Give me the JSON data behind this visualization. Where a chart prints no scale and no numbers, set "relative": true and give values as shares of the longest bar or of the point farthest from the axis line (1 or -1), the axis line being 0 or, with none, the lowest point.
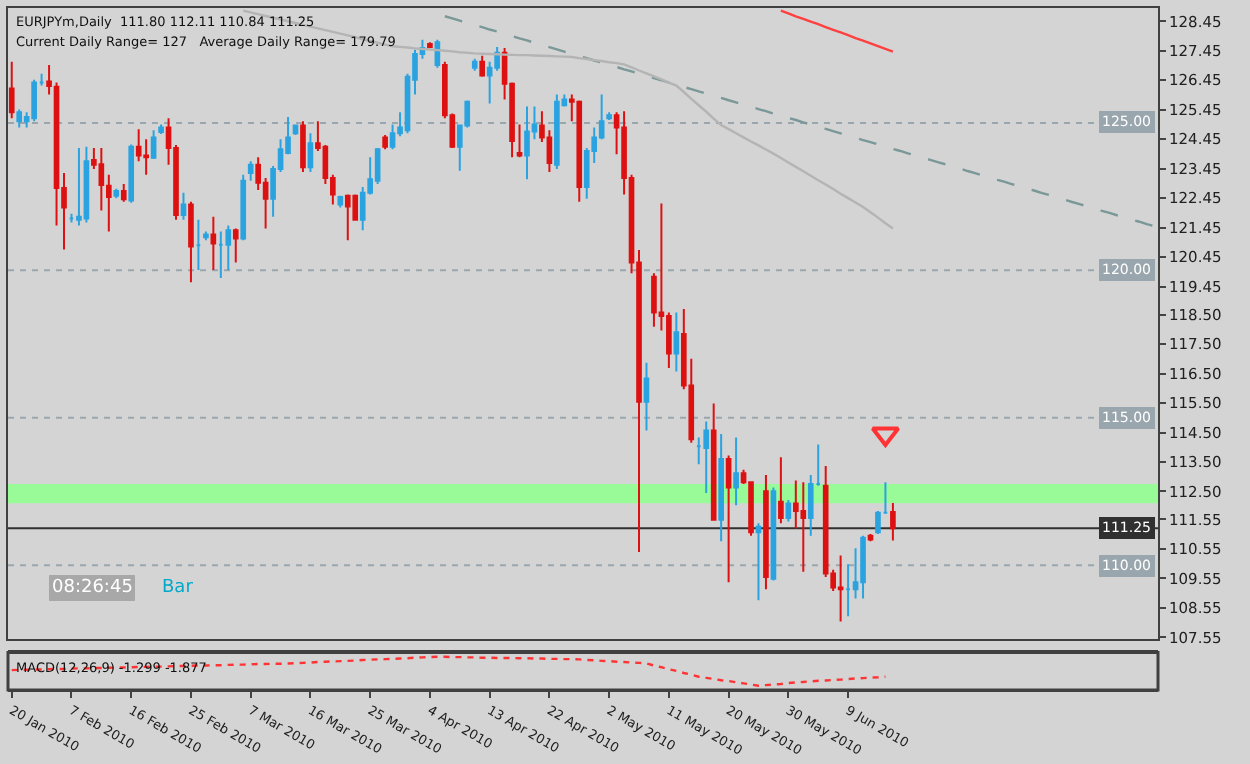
{
  "chart_data": [
    {
      "type": "candlestick",
      "title": "EURJPYm,Daily  111.80 112.11 110.84 111.25",
      "subtitle": "Current Daily Range= 127   Average Daily Range= 179.79",
      "ohlc": [
        [
          126.17,
          127.08,
          125.16,
          125.36
        ],
        [
          125.06,
          125.46,
          124.85,
          125.36
        ],
        [
          125.06,
          125.36,
          124.85,
          125.2
        ],
        [
          125.16,
          126.47,
          125.06,
          126.37
        ],
        [
          126.37,
          126.67,
          126.27,
          126.37
        ],
        [
          126.41,
          126.97,
          125.97,
          126.25
        ],
        [
          126.23,
          126.37,
          121.52,
          122.79
        ],
        [
          122.79,
          123.3,
          120.71,
          122.13
        ],
        [
          121.76,
          121.92,
          121.62,
          121.76
        ],
        [
          121.72,
          124.15,
          121.52,
          121.82
        ],
        [
          121.76,
          124.19,
          121.62,
          123.7
        ],
        [
          123.74,
          124.15,
          123.44,
          123.58
        ],
        [
          123.6,
          124.15,
          122.03,
          122.9
        ],
        [
          122.87,
          123.24,
          121.32,
          122.49
        ],
        [
          122.53,
          122.77,
          122.45,
          122.69
        ],
        [
          122.69,
          122.93,
          122.33,
          122.41
        ],
        [
          122.37,
          124.27,
          122.29,
          124.19
        ],
        [
          124.19,
          124.79,
          123.7,
          123.9
        ],
        [
          123.9,
          124.45,
          123.24,
          123.84
        ],
        [
          123.82,
          124.75,
          123.78,
          124.51
        ],
        [
          124.69,
          124.95,
          124.63,
          124.85
        ],
        [
          124.85,
          125.16,
          123.58,
          124.15
        ],
        [
          124.15,
          124.25,
          121.72,
          121.88
        ],
        [
          121.88,
          122.63,
          121.72,
          122.23
        ],
        [
          122.23,
          122.33,
          119.6,
          120.81
        ],
        [
          120.85,
          121.72,
          120.01,
          120.85
        ],
        [
          121.12,
          121.32,
          121.02,
          121.22
        ],
        [
          121.22,
          121.82,
          120.01,
          120.91
        ],
        [
          120.87,
          121.32,
          119.74,
          120.87
        ],
        [
          120.87,
          121.52,
          120.01,
          121.36
        ],
        [
          121.36,
          121.42,
          120.27,
          121.08
        ],
        [
          121.08,
          123.24,
          121.02,
          123.04
        ],
        [
          123.3,
          123.7,
          123.04,
          123.58
        ],
        [
          123.58,
          123.84,
          122.73,
          122.97
        ],
        [
          122.97,
          123.13,
          121.42,
          122.43
        ],
        [
          122.43,
          123.54,
          121.82,
          123.44
        ],
        [
          123.44,
          124.45,
          123.34,
          124.11
        ],
        [
          123.98,
          125.2,
          123.94,
          124.51
        ],
        [
          124.65,
          124.95,
          124.59,
          124.91
        ],
        [
          124.91,
          125.06,
          123.34,
          123.5
        ],
        [
          123.5,
          124.65,
          123.34,
          124.31
        ],
        [
          124.31,
          125.06,
          124.05,
          124.15
        ],
        [
          124.19,
          124.25,
          122.93,
          123.13
        ],
        [
          123.13,
          123.24,
          122.23,
          122.57
        ],
        [
          122.23,
          122.53,
          122.13,
          122.49
        ],
        [
          122.53,
          122.57,
          121.02,
          122.17
        ],
        [
          122.53,
          122.57,
          121.68,
          121.72
        ],
        [
          121.72,
          122.83,
          121.36,
          122.63
        ],
        [
          122.63,
          123.84,
          122.57,
          123.09
        ],
        [
          123.04,
          124.15,
          122.93,
          124.11
        ],
        [
          124.51,
          124.59,
          124.11,
          124.19
        ],
        [
          124.19,
          124.95,
          124.11,
          124.65
        ],
        [
          124.65,
          125.36,
          124.55,
          124.85
        ],
        [
          124.75,
          126.67,
          124.65,
          126.57
        ],
        [
          126.47,
          127.48,
          125.97,
          127.34
        ],
        [
          127.34,
          127.82,
          127.18,
          127.54
        ],
        [
          127.68,
          127.74,
          127.54,
          127.58
        ],
        [
          126.97,
          127.82,
          126.87,
          127.74
        ],
        [
          126.97,
          127.08,
          125.16,
          125.26
        ],
        [
          125.26,
          125.32,
          124.15,
          124.19
        ],
        [
          124.19,
          124.95,
          123.38,
          124.91
        ],
        [
          124.91,
          125.76,
          124.85,
          125.72
        ],
        [
          126.87,
          127.18,
          126.77,
          127.08
        ],
        [
          127.08,
          127.28,
          126.57,
          126.61
        ],
        [
          126.61,
          127.08,
          125.66,
          126.87
        ],
        [
          126.87,
          127.58,
          126.77,
          127.38
        ],
        [
          127.38,
          127.54,
          125.8,
          126.33
        ],
        [
          126.33,
          126.37,
          123.84,
          124.39
        ],
        [
          123.98,
          124.95,
          123.84,
          123.9
        ],
        [
          123.9,
          125.56,
          123.09,
          124.71
        ],
        [
          124.71,
          125.56,
          124.45,
          124.95
        ],
        [
          124.91,
          125.4,
          124.35,
          124.51
        ],
        [
          124.51,
          124.75,
          123.34,
          123.64
        ],
        [
          123.58,
          125.97,
          123.44,
          125.72
        ],
        [
          125.6,
          125.97,
          125.56,
          125.8
        ],
        [
          125.8,
          125.97,
          125.06,
          125.72
        ],
        [
          125.72,
          125.76,
          122.33,
          122.83
        ],
        [
          122.83,
          124.15,
          122.43,
          124.05
        ],
        [
          124.05,
          124.85,
          123.64,
          124.51
        ],
        [
          124.51,
          125.97,
          124.45,
          125.06
        ],
        [
          125.16,
          125.36,
          125.1,
          125.26
        ],
        [
          125.26,
          125.36,
          123.94,
          124.85
        ],
        [
          124.85,
          125.4,
          122.57,
          123.13
        ],
        [
          123.13,
          123.24,
          119.9,
          120.27
        ],
        [
          120.27,
          120.69,
          110.45,
          115.54
        ],
        [
          115.54,
          116.87,
          114.57,
          116.33
        ],
        [
          119.78,
          119.9,
          118.09,
          118.57
        ],
        [
          118.57,
          122.27,
          117.96,
          118.45
        ],
        [
          118.45,
          118.57,
          116.69,
          117.18
        ],
        [
          117.18,
          118.57,
          116.57,
          117.9
        ],
        [
          117.84,
          118.69,
          115.97,
          116.09
        ],
        [
          116.09,
          117.0,
          114.15,
          114.27
        ],
        [
          114.03,
          114.33,
          113.42,
          114.03
        ],
        [
          113.97,
          114.87,
          112.45,
          114.57
        ],
        [
          114.57,
          115.48,
          111.54,
          111.54
        ],
        [
          111.54,
          114.45,
          110.81,
          113.6
        ],
        [
          113.6,
          113.72,
          109.42,
          112.63
        ],
        [
          112.63,
          114.33,
          112.03,
          113.12
        ],
        [
          113.12,
          113.24,
          112.75,
          112.81
        ],
        [
          112.81,
          112.81,
          111.0,
          111.12
        ],
        [
          111.12,
          111.42,
          108.81,
          111.3
        ],
        [
          112.51,
          113.06,
          109.18,
          109.6
        ],
        [
          109.54,
          112.63,
          109.48,
          112.51
        ],
        [
          112.15,
          113.66,
          111.42,
          111.6
        ],
        [
          111.6,
          112.21,
          111.48,
          112.09
        ],
        [
          112.09,
          112.87,
          111.24,
          111.84
        ],
        [
          111.84,
          112.81,
          109.78,
          111.6
        ],
        [
          111.6,
          113.06,
          111.0,
          112.75
        ],
        [
          112.75,
          114.09,
          112.69,
          112.75
        ],
        [
          112.69,
          113.36,
          109.6,
          109.72
        ],
        [
          109.72,
          109.84,
          109.12,
          109.24
        ],
        [
          109.24,
          110.33,
          108.09,
          109.18
        ],
        [
          109.18,
          110.03,
          108.27,
          109.18
        ],
        [
          109.18,
          110.57,
          108.87,
          109.42
        ],
        [
          109.42,
          111.0,
          108.87,
          110.93
        ],
        [
          111.0,
          111.06,
          110.81,
          110.87
        ],
        [
          111.12,
          111.84,
          111.06,
          111.78
        ],
        [
          111.78,
          112.81,
          111.78,
          111.78
        ],
        [
          111.8,
          112.11,
          110.84,
          111.25
        ],
        null,
        null,
        null,
        null,
        null,
        null,
        null,
        null,
        null,
        null,
        null,
        null,
        null,
        null,
        null,
        null,
        null,
        null,
        null,
        null,
        null,
        null,
        null,
        null,
        null,
        null,
        null,
        null,
        null,
        null,
        null,
        null,
        null,
        null,
        null
      ],
      "colors": [
        "#dd1111",
        "#2aa3e0",
        "#2aa3e0",
        "#2aa3e0",
        "#2aa3e0",
        "#dd1111",
        "#dd1111",
        "#dd1111",
        "#2aa3e0",
        "#2aa3e0",
        "#2aa3e0",
        "#dd1111",
        "#dd1111",
        "#dd1111",
        "#2aa3e0",
        "#dd1111",
        "#2aa3e0",
        "#dd1111",
        "#dd1111",
        "#2aa3e0",
        "#2aa3e0",
        "#dd1111",
        "#dd1111",
        "#2aa3e0",
        "#dd1111",
        "#2aa3e0",
        "#2aa3e0",
        "#dd1111",
        "#2aa3e0",
        "#2aa3e0",
        "#dd1111",
        "#2aa3e0",
        "#2aa3e0",
        "#dd1111",
        "#dd1111",
        "#2aa3e0",
        "#2aa3e0",
        "#2aa3e0",
        "#2aa3e0",
        "#dd1111",
        "#2aa3e0",
        "#dd1111",
        "#dd1111",
        "#dd1111",
        "#2aa3e0",
        "#dd1111",
        "#dd1111",
        "#2aa3e0",
        "#2aa3e0",
        "#2aa3e0",
        "#dd1111",
        "#2aa3e0",
        "#2aa3e0",
        "#2aa3e0",
        "#2aa3e0",
        "#2aa3e0",
        "#dd1111",
        "#2aa3e0",
        "#dd1111",
        "#dd1111",
        "#2aa3e0",
        "#2aa3e0",
        "#2aa3e0",
        "#dd1111",
        "#2aa3e0",
        "#2aa3e0",
        "#dd1111",
        "#dd1111",
        "#dd1111",
        "#2aa3e0",
        "#2aa3e0",
        "#dd1111",
        "#dd1111",
        "#2aa3e0",
        "#2aa3e0",
        "#dd1111",
        "#dd1111",
        "#2aa3e0",
        "#2aa3e0",
        "#2aa3e0",
        "#2aa3e0",
        "#dd1111",
        "#dd1111",
        "#dd1111",
        "#dd1111",
        "#2aa3e0",
        "#dd1111",
        "#dd1111",
        "#dd1111",
        "#2aa3e0",
        "#dd1111",
        "#dd1111",
        "#2aa3e0",
        "#2aa3e0",
        "#dd1111",
        "#2aa3e0",
        "#dd1111",
        "#2aa3e0",
        "#dd1111",
        "#dd1111",
        "#2aa3e0",
        "#dd1111",
        "#2aa3e0",
        "#dd1111",
        "#2aa3e0",
        "#dd1111",
        "#dd1111",
        "#2aa3e0",
        "#2aa3e0",
        "#dd1111",
        "#dd1111",
        "#dd1111",
        "#2aa3e0",
        "#2aa3e0",
        "#2aa3e0",
        "#dd1111",
        "#2aa3e0",
        "#2aa3e0",
        "#dd1111",
        null,
        null,
        null,
        null,
        null,
        null,
        null,
        null,
        null,
        null,
        null,
        null,
        null,
        null,
        null,
        null,
        null,
        null,
        null,
        null,
        null,
        null,
        null,
        null,
        null,
        null,
        null,
        null,
        null,
        null,
        null,
        null,
        null,
        null,
        null
      ],
      "ylim": [
        107.5,
        128.9
      ],
      "yticks": [
        {
          "value": 128.45,
          "label": "128.45"
        },
        {
          "value": 127.45,
          "label": "127.45"
        },
        {
          "value": 126.45,
          "label": "126.45"
        },
        {
          "value": 125.45,
          "label": "125.45"
        },
        {
          "value": 124.45,
          "label": "124.45"
        },
        {
          "value": 123.45,
          "label": "123.45"
        },
        {
          "value": 122.45,
          "label": "122.45"
        },
        {
          "value": 121.45,
          "label": "121.45"
        },
        {
          "value": 120.45,
          "label": "120.45"
        },
        {
          "value": 119.45,
          "label": "119.45"
        },
        {
          "value": 118.5,
          "label": "118.50"
        },
        {
          "value": 117.5,
          "label": "117.50"
        },
        {
          "value": 116.5,
          "label": "116.50"
        },
        {
          "value": 115.5,
          "label": "115.50"
        },
        {
          "value": 114.5,
          "label": "114.50"
        },
        {
          "value": 113.5,
          "label": "113.50"
        },
        {
          "value": 112.5,
          "label": "112.50"
        },
        {
          "value": 111.55,
          "label": "111.55"
        },
        {
          "value": 110.55,
          "label": "110.55"
        },
        {
          "value": 109.55,
          "label": "109.55"
        },
        {
          "value": 108.55,
          "label": "108.55"
        },
        {
          "value": 107.55,
          "label": "107.55"
        }
      ],
      "tick_labels": "y",
      "ref_lines": [
        {
          "axis": "y",
          "value": 125.0,
          "label": "125.00",
          "color": "#9aa6ad",
          "line_style": "dotted"
        },
        {
          "axis": "y",
          "value": 120.0,
          "label": "120.00",
          "color": "#9aa6ad",
          "line_style": "dotted"
        },
        {
          "axis": "y",
          "value": 115.0,
          "label": "115.00",
          "color": "#9aa6ad",
          "line_style": "dotted"
        },
        {
          "axis": "y",
          "value": 110.0,
          "label": "110.00",
          "color": "#9aa6ad",
          "line_style": "dotted"
        },
        {
          "axis": "y",
          "value": 111.25,
          "label": "111.25",
          "color": "#303030",
          "line_style": "solid"
        }
      ],
      "bands": [
        {
          "axis": "y",
          "from": 112.1,
          "to": 112.75,
          "color": "#98fb98"
        }
      ],
      "series": [
        {
          "type": "line",
          "color": "#7a9898",
          "line_style": "dashed",
          "values": [
            null,
            null,
            null,
            null,
            null,
            null,
            null,
            null,
            null,
            null,
            null,
            null,
            null,
            null,
            null,
            null,
            null,
            null,
            null,
            null,
            null,
            null,
            null,
            null,
            null,
            null,
            null,
            null,
            null,
            null,
            null,
            null,
            null,
            null,
            null,
            null,
            null,
            null,
            null,
            null,
            null,
            null,
            null,
            null,
            null,
            null,
            null,
            null,
            null,
            null,
            null,
            null,
            null,
            null,
            null,
            null,
            null,
            null,
            128.62,
            128.55,
            128.47,
            128.4,
            128.32,
            128.25,
            128.17,
            128.1,
            128.02,
            127.95,
            127.87,
            127.8,
            127.72,
            127.65,
            127.57,
            127.5,
            127.42,
            127.35,
            127.27,
            127.2,
            127.12,
            127.05,
            126.97,
            126.9,
            126.82,
            126.75,
            126.67,
            126.6,
            126.52,
            126.45,
            126.37,
            126.3,
            126.22,
            126.15,
            126.07,
            126.0,
            125.92,
            125.85,
            125.77,
            125.7,
            125.62,
            125.55,
            125.47,
            125.4,
            125.32,
            125.25,
            125.17,
            125.1,
            125.02,
            124.95,
            124.87,
            124.8,
            124.72,
            124.65,
            124.57,
            124.5,
            124.42,
            124.35,
            124.27,
            124.2,
            124.12,
            124.05,
            123.97,
            123.9,
            123.82,
            123.75,
            123.67,
            123.6,
            123.52,
            123.45,
            123.37,
            123.3,
            123.22,
            123.15,
            123.07,
            123.0,
            122.92,
            122.85,
            122.77,
            122.7,
            122.62,
            122.55,
            122.47,
            122.4,
            122.32,
            122.25,
            122.17,
            122.1,
            122.02,
            121.95,
            121.87,
            121.8,
            121.72,
            121.65,
            121.57,
            121.5
          ]
        },
        {
          "type": "line",
          "color": "#ff4040",
          "line_style": "solid",
          "values": [
            null,
            null,
            null,
            null,
            null,
            null,
            null,
            null,
            null,
            null,
            null,
            null,
            null,
            null,
            null,
            null,
            null,
            null,
            null,
            null,
            null,
            null,
            null,
            null,
            null,
            null,
            null,
            null,
            null,
            null,
            null,
            null,
            null,
            null,
            null,
            null,
            null,
            null,
            null,
            null,
            null,
            null,
            null,
            null,
            null,
            null,
            null,
            null,
            null,
            null,
            null,
            null,
            null,
            null,
            null,
            null,
            null,
            null,
            null,
            null,
            null,
            null,
            null,
            null,
            null,
            null,
            null,
            null,
            null,
            null,
            null,
            null,
            null,
            null,
            null,
            null,
            null,
            null,
            null,
            null,
            null,
            null,
            null,
            null,
            null,
            null,
            null,
            null,
            null,
            null,
            null,
            null,
            null,
            null,
            null,
            null,
            null,
            null,
            null,
            null,
            null,
            null,
            null,
            128.81,
            128.72,
            128.62,
            128.53,
            128.44,
            128.35,
            128.25,
            128.16,
            128.07,
            127.98,
            127.88,
            127.79,
            127.7,
            127.61,
            127.51,
            127.42,
            null,
            null,
            null,
            null,
            null,
            null,
            null,
            null,
            null,
            null,
            null,
            null,
            null,
            null,
            null,
            null,
            null,
            null,
            null,
            null,
            null,
            null,
            null,
            null,
            null,
            null,
            null,
            null,
            null,
            null,
            null,
            null,
            null,
            null,
            null
          ]
        },
        {
          "type": "line",
          "color": "#b4b4b4",
          "line_style": "solid",
          "values": [
            null,
            null,
            null,
            null,
            null,
            null,
            null,
            null,
            null,
            null,
            null,
            null,
            null,
            null,
            null,
            null,
            null,
            null,
            null,
            null,
            null,
            null,
            null,
            null,
            null,
            null,
            null,
            null,
            null,
            null,
            null,
            128.81,
            128.75,
            128.69,
            128.63,
            128.57,
            128.51,
            128.45,
            128.39,
            128.33,
            128.27,
            128.21,
            128.15,
            128.09,
            128.03,
            127.97,
            127.91,
            127.84,
            127.78,
            127.72,
            127.66,
            127.6,
            127.58,
            127.56,
            127.53,
            127.51,
            127.49,
            127.47,
            127.45,
            127.43,
            127.4,
            127.38,
            127.36,
            127.35,
            127.34,
            127.33,
            127.32,
            127.31,
            127.3,
            127.3,
            127.29,
            127.28,
            127.27,
            127.26,
            127.25,
            127.24,
            127.2,
            127.17,
            127.13,
            127.1,
            127.06,
            127.03,
            126.99,
            126.89,
            126.78,
            126.68,
            126.58,
            126.48,
            126.37,
            126.27,
            126.05,
            125.82,
            125.6,
            125.38,
            125.15,
            124.93,
            124.79,
            124.65,
            124.51,
            124.37,
            124.24,
            124.1,
            123.96,
            123.81,
            123.66,
            123.51,
            123.36,
            123.21,
            123.06,
            122.91,
            122.76,
            122.6,
            122.45,
            122.3,
            122.15,
            121.97,
            121.79,
            121.6,
            121.42,
            null,
            null,
            null,
            null,
            null,
            null,
            null,
            null,
            null,
            null,
            null,
            null,
            null,
            null,
            null,
            null,
            null,
            null,
            null,
            null,
            null,
            null,
            null,
            null,
            null,
            null,
            null,
            null,
            null,
            null,
            null,
            null,
            null,
            null,
            null
          ]
        },
        {
          "type": "scatter",
          "color": "#ff3333",
          "marker": "triangle",
          "values": [
            null,
            null,
            null,
            null,
            null,
            null,
            null,
            null,
            null,
            null,
            null,
            null,
            null,
            null,
            null,
            null,
            null,
            null,
            null,
            null,
            null,
            null,
            null,
            null,
            null,
            null,
            null,
            null,
            null,
            null,
            null,
            null,
            null,
            null,
            null,
            null,
            null,
            null,
            null,
            null,
            null,
            null,
            null,
            null,
            null,
            null,
            null,
            null,
            null,
            null,
            null,
            null,
            null,
            null,
            null,
            null,
            null,
            null,
            null,
            null,
            null,
            null,
            null,
            null,
            null,
            null,
            null,
            null,
            null,
            null,
            null,
            null,
            null,
            null,
            null,
            null,
            null,
            null,
            null,
            null,
            null,
            null,
            null,
            null,
            null,
            null,
            null,
            null,
            null,
            null,
            null,
            null,
            null,
            null,
            null,
            null,
            null,
            null,
            null,
            null,
            null,
            null,
            null,
            null,
            null,
            null,
            null,
            null,
            null,
            null,
            null,
            null,
            null,
            null,
            null,
            null,
            null,
            114.45,
            null,
            null,
            null,
            null,
            null,
            null,
            null,
            null,
            null,
            null,
            null,
            null,
            null,
            null,
            null,
            null,
            null,
            null,
            null,
            null,
            null,
            null,
            null,
            null,
            null,
            null,
            null,
            null,
            null,
            null,
            null,
            null,
            null,
            null,
            null,
            null
          ]
        }
      ],
      "annotations": [
        "08:26:45",
        "Bar"
      ]
    },
    {
      "type": "line",
      "title": "MACD(12,26,9) -1.299 -1.877",
      "relative": true,
      "series": [
        {
          "color": "#ff3333",
          "values": [
            0.54,
            0.55,
            0.55,
            0.56,
            0.56,
            0.57,
            0.58,
            0.58,
            0.59,
            0.6,
            0.6,
            0.61,
            0.61,
            0.62,
            0.63,
            0.63,
            0.64,
            0.65,
            0.65,
            0.66,
            0.66,
            0.67,
            0.68,
            0.68,
            0.69,
            0.7,
            0.7,
            0.71,
            0.71,
            0.72,
            0.73,
            0.73,
            0.74,
            0.75,
            0.75,
            0.76,
            0.76,
            0.77,
            0.78,
            0.79,
            0.8,
            0.82,
            0.83,
            0.84,
            0.85,
            0.86,
            0.87,
            0.89,
            0.9,
            0.91,
            0.92,
            0.93,
            0.94,
            0.95,
            0.97,
            0.98,
            0.99,
            1,
            1.0,
            0.99,
            0.99,
            0.98,
            0.98,
            0.97,
            0.97,
            0.96,
            0.96,
            0.96,
            0.95,
            0.95,
            0.94,
            0.94,
            0.93,
            0.93,
            0.92,
            0.92,
            0.91,
            0.89,
            0.88,
            0.86,
            0.85,
            0.83,
            0.82,
            0.8,
            0.79,
            0.77,
            0.7,
            0.64,
            0.57,
            0.51,
            0.44,
            0.38,
            0.31,
            0.27,
            0.23,
            0.19,
            0.16,
            0.12,
            0.08,
            0.04,
            0,
            0.02,
            0.04,
            0.06,
            0.09,
            0.11,
            0.13,
            0.15,
            0.17,
            0.18,
            0.2,
            0.21,
            0.23,
            0.25,
            0.26,
            0.28,
            0.29,
            0.31,
            null,
            null,
            null,
            null,
            null,
            null,
            null,
            null,
            null,
            null,
            null,
            null,
            null,
            null,
            null,
            null,
            null,
            null,
            null,
            null,
            null,
            null,
            null,
            null,
            null,
            null,
            null,
            null,
            null,
            null,
            null,
            null,
            null,
            null,
            null,
            null
          ]
        }
      ],
      "line_style": "dotted",
      "marker": "none",
      "categories": [
        "20 Jan 2010",
        null,
        null,
        null,
        null,
        null,
        null,
        null,
        "7 Feb 2010",
        null,
        null,
        null,
        null,
        null,
        null,
        null,
        "16 Feb 2010",
        null,
        null,
        null,
        null,
        null,
        null,
        null,
        "25 Feb 2010",
        null,
        null,
        null,
        null,
        null,
        null,
        null,
        "7 Mar 2010",
        null,
        null,
        null,
        null,
        null,
        null,
        null,
        "16 Mar 2010",
        null,
        null,
        null,
        null,
        null,
        null,
        null,
        "25 Mar 2010",
        null,
        null,
        null,
        null,
        null,
        null,
        null,
        "4 Apr 2010",
        null,
        null,
        null,
        null,
        null,
        null,
        null,
        "13 Apr 2010",
        null,
        null,
        null,
        null,
        null,
        null,
        null,
        "22 Apr 2010",
        null,
        null,
        null,
        null,
        null,
        null,
        null,
        "2 May 2010",
        null,
        null,
        null,
        null,
        null,
        null,
        null,
        "11 May 2010",
        null,
        null,
        null,
        null,
        null,
        null,
        null,
        "20 May 2010",
        null,
        null,
        null,
        null,
        null,
        null,
        null,
        "30 May 2010",
        null,
        null,
        null,
        null,
        null,
        null,
        null,
        "9 Jun 2010",
        null,
        null,
        null,
        null,
        null,
        null,
        null,
        null,
        null,
        null,
        null,
        null,
        null,
        null,
        null,
        null,
        null,
        null,
        null,
        null,
        null,
        null,
        null,
        null,
        null,
        null,
        null,
        null,
        null,
        null,
        null,
        null,
        null,
        null,
        null,
        null,
        null,
        null,
        null,
        null,
        null
      ],
      "tick_labels": "x"
    }
  ]
}
